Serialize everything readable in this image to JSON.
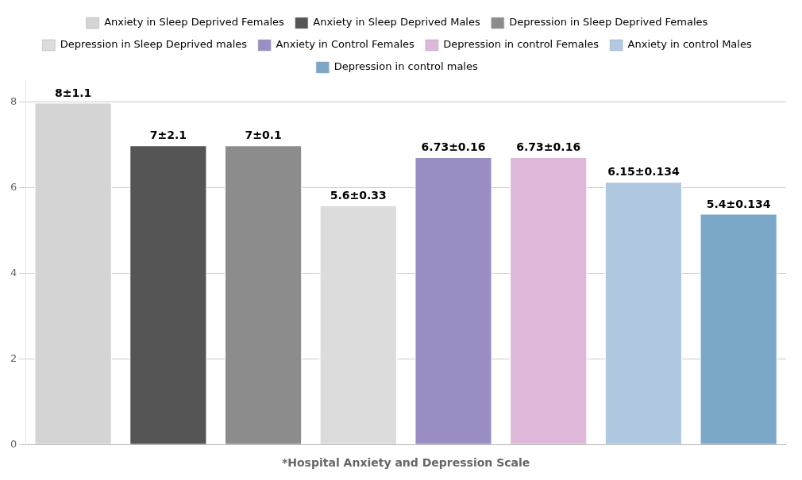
{
  "chart_data": {
    "type": "bar",
    "categories": [
      "Anxiety in Sleep Deprived Females",
      "Anxiety in Sleep Deprived Males",
      "Depression in Sleep Deprived Females",
      "Depression in Sleep Deprived males",
      "Anxiety in Control Females",
      "Depression in control Females",
      "Anxiety in control Males",
      "Depression in control males"
    ],
    "values": [
      8.0,
      7.0,
      7.0,
      5.6,
      6.73,
      6.73,
      6.15,
      5.4
    ],
    "value_labels": [
      "8±1.1",
      "7±2.1",
      "7±0.1",
      "5.6±0.33",
      "6.73±0.16",
      "6.73±0.16",
      "6.15±0.134",
      "5.4±0.134"
    ],
    "colors": [
      "#d4d4d4",
      "#555555",
      "#8c8c8c",
      "#dcdcdc",
      "#9b8ec4",
      "#ddb8d8",
      "#b0c8e0",
      "#7ba7c8"
    ],
    "xlabel": "*Hospital Anxiety and Depression Scale",
    "ylim": [
      0,
      8.5
    ],
    "yticks": [
      0,
      2,
      4,
      6,
      8
    ],
    "grid": true,
    "legend": "top",
    "data_labels": true,
    "tick_labels": "y"
  }
}
